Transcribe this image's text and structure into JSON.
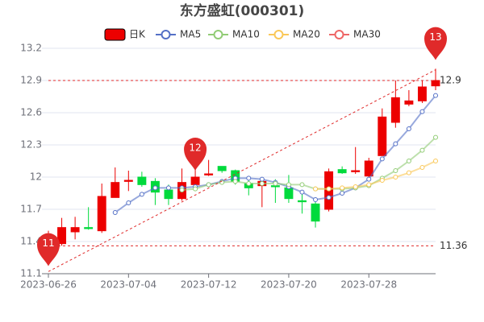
{
  "chart_data": {
    "type": "candlestick",
    "title": "东方盛虹(000301)",
    "categories": [
      "2023-06-26",
      null,
      null,
      null,
      null,
      null,
      "2023-07-04",
      null,
      null,
      null,
      null,
      null,
      "2023-07-12",
      null,
      null,
      null,
      null,
      null,
      "2023-07-20",
      null,
      null,
      null,
      null,
      null,
      "2023-07-28",
      null,
      null,
      null,
      null,
      null
    ],
    "ylim": [
      11.1,
      13.2
    ],
    "yticks": [
      11.1,
      11.4,
      11.7,
      12,
      12.3,
      12.6,
      12.9,
      13.2
    ],
    "grid": true,
    "up_color": "#ec0000",
    "down_color": "#00da3c",
    "series": [
      {
        "name": "日K",
        "color": "#ec0000",
        "open": [
          11.38,
          11.38,
          11.49,
          11.53,
          11.5,
          11.81,
          11.96,
          12.0,
          11.96,
          11.88,
          11.8,
          11.93,
          12.02,
          12.1,
          12.06,
          11.94,
          11.92,
          11.92,
          11.9,
          11.78,
          11.75,
          11.7,
          12.07,
          12.05,
          12.01,
          12.2,
          12.51,
          12.68,
          12.71,
          12.85
        ],
        "close": [
          11.45,
          11.53,
          11.53,
          11.52,
          11.82,
          11.95,
          11.97,
          11.93,
          11.86,
          11.8,
          11.95,
          12.0,
          12.03,
          12.06,
          11.96,
          11.9,
          11.96,
          11.91,
          11.8,
          11.77,
          11.59,
          12.05,
          12.04,
          12.06,
          12.15,
          12.56,
          12.74,
          12.71,
          12.84,
          12.9
        ],
        "low": [
          11.33,
          11.36,
          11.42,
          11.51,
          11.48,
          11.81,
          11.87,
          11.91,
          11.74,
          11.74,
          11.78,
          11.92,
          12.01,
          12.04,
          11.93,
          11.83,
          11.72,
          11.76,
          11.76,
          11.66,
          11.53,
          11.68,
          12.03,
          12.03,
          11.98,
          12.2,
          12.46,
          12.66,
          12.69,
          12.81
        ],
        "high": [
          11.5,
          11.62,
          11.63,
          11.72,
          11.94,
          12.09,
          12.06,
          12.05,
          11.99,
          11.93,
          12.08,
          12.09,
          12.16,
          12.1,
          12.07,
          12.0,
          11.98,
          11.98,
          12.02,
          11.86,
          11.77,
          12.08,
          12.1,
          12.28,
          12.18,
          12.64,
          12.9,
          12.81,
          12.9,
          13.01
        ]
      },
      {
        "name": "MA5",
        "type": "line",
        "color": "#5470c6",
        "values": [
          null,
          null,
          null,
          null,
          null,
          11.67,
          11.76,
          11.84,
          11.9,
          11.9,
          11.9,
          11.91,
          11.93,
          11.96,
          11.99,
          11.99,
          11.98,
          11.95,
          11.91,
          11.86,
          11.79,
          11.81,
          11.85,
          11.9,
          11.98,
          12.17,
          12.31,
          12.45,
          12.61,
          12.76
        ]
      },
      {
        "name": "MA10",
        "type": "line",
        "color": "#91cc75",
        "values": [
          null,
          null,
          null,
          null,
          null,
          null,
          null,
          null,
          null,
          null,
          11.88,
          11.89,
          11.93,
          11.95,
          11.96,
          11.94,
          11.94,
          11.94,
          11.93,
          11.93,
          11.89,
          11.89,
          11.89,
          11.9,
          11.92,
          11.99,
          12.06,
          12.15,
          12.25,
          12.37
        ]
      },
      {
        "name": "MA20",
        "type": "line",
        "color": "#fac858",
        "values": [
          null,
          null,
          null,
          null,
          null,
          null,
          null,
          null,
          null,
          null,
          null,
          null,
          null,
          null,
          null,
          null,
          null,
          null,
          null,
          null,
          11.89,
          11.89,
          11.9,
          11.91,
          11.93,
          11.97,
          12.0,
          12.04,
          12.09,
          12.15
        ]
      },
      {
        "name": "MA30",
        "type": "line",
        "color": "#ee6666",
        "values": [
          null,
          null,
          null,
          null,
          null,
          null,
          null,
          null,
          null,
          null,
          null,
          null,
          null,
          null,
          null,
          null,
          null,
          null,
          null,
          null,
          null,
          null,
          null,
          null,
          null,
          null,
          null,
          null,
          null,
          null
        ]
      }
    ],
    "mark_points": [
      {
        "index": 0,
        "value": 11.17,
        "label": "11"
      },
      {
        "index": 11,
        "value": 12.06,
        "label": "12"
      },
      {
        "index": 29,
        "value": 13.09,
        "label": "13"
      }
    ],
    "mark_lines": [
      {
        "value": 12.9,
        "label": "12.9"
      },
      {
        "value": 11.36,
        "label": "11.36"
      }
    ],
    "trend_line": {
      "from": [
        0,
        11.12
      ],
      "to": [
        29,
        13.0
      ]
    },
    "mark_color": "#e02a2a"
  }
}
